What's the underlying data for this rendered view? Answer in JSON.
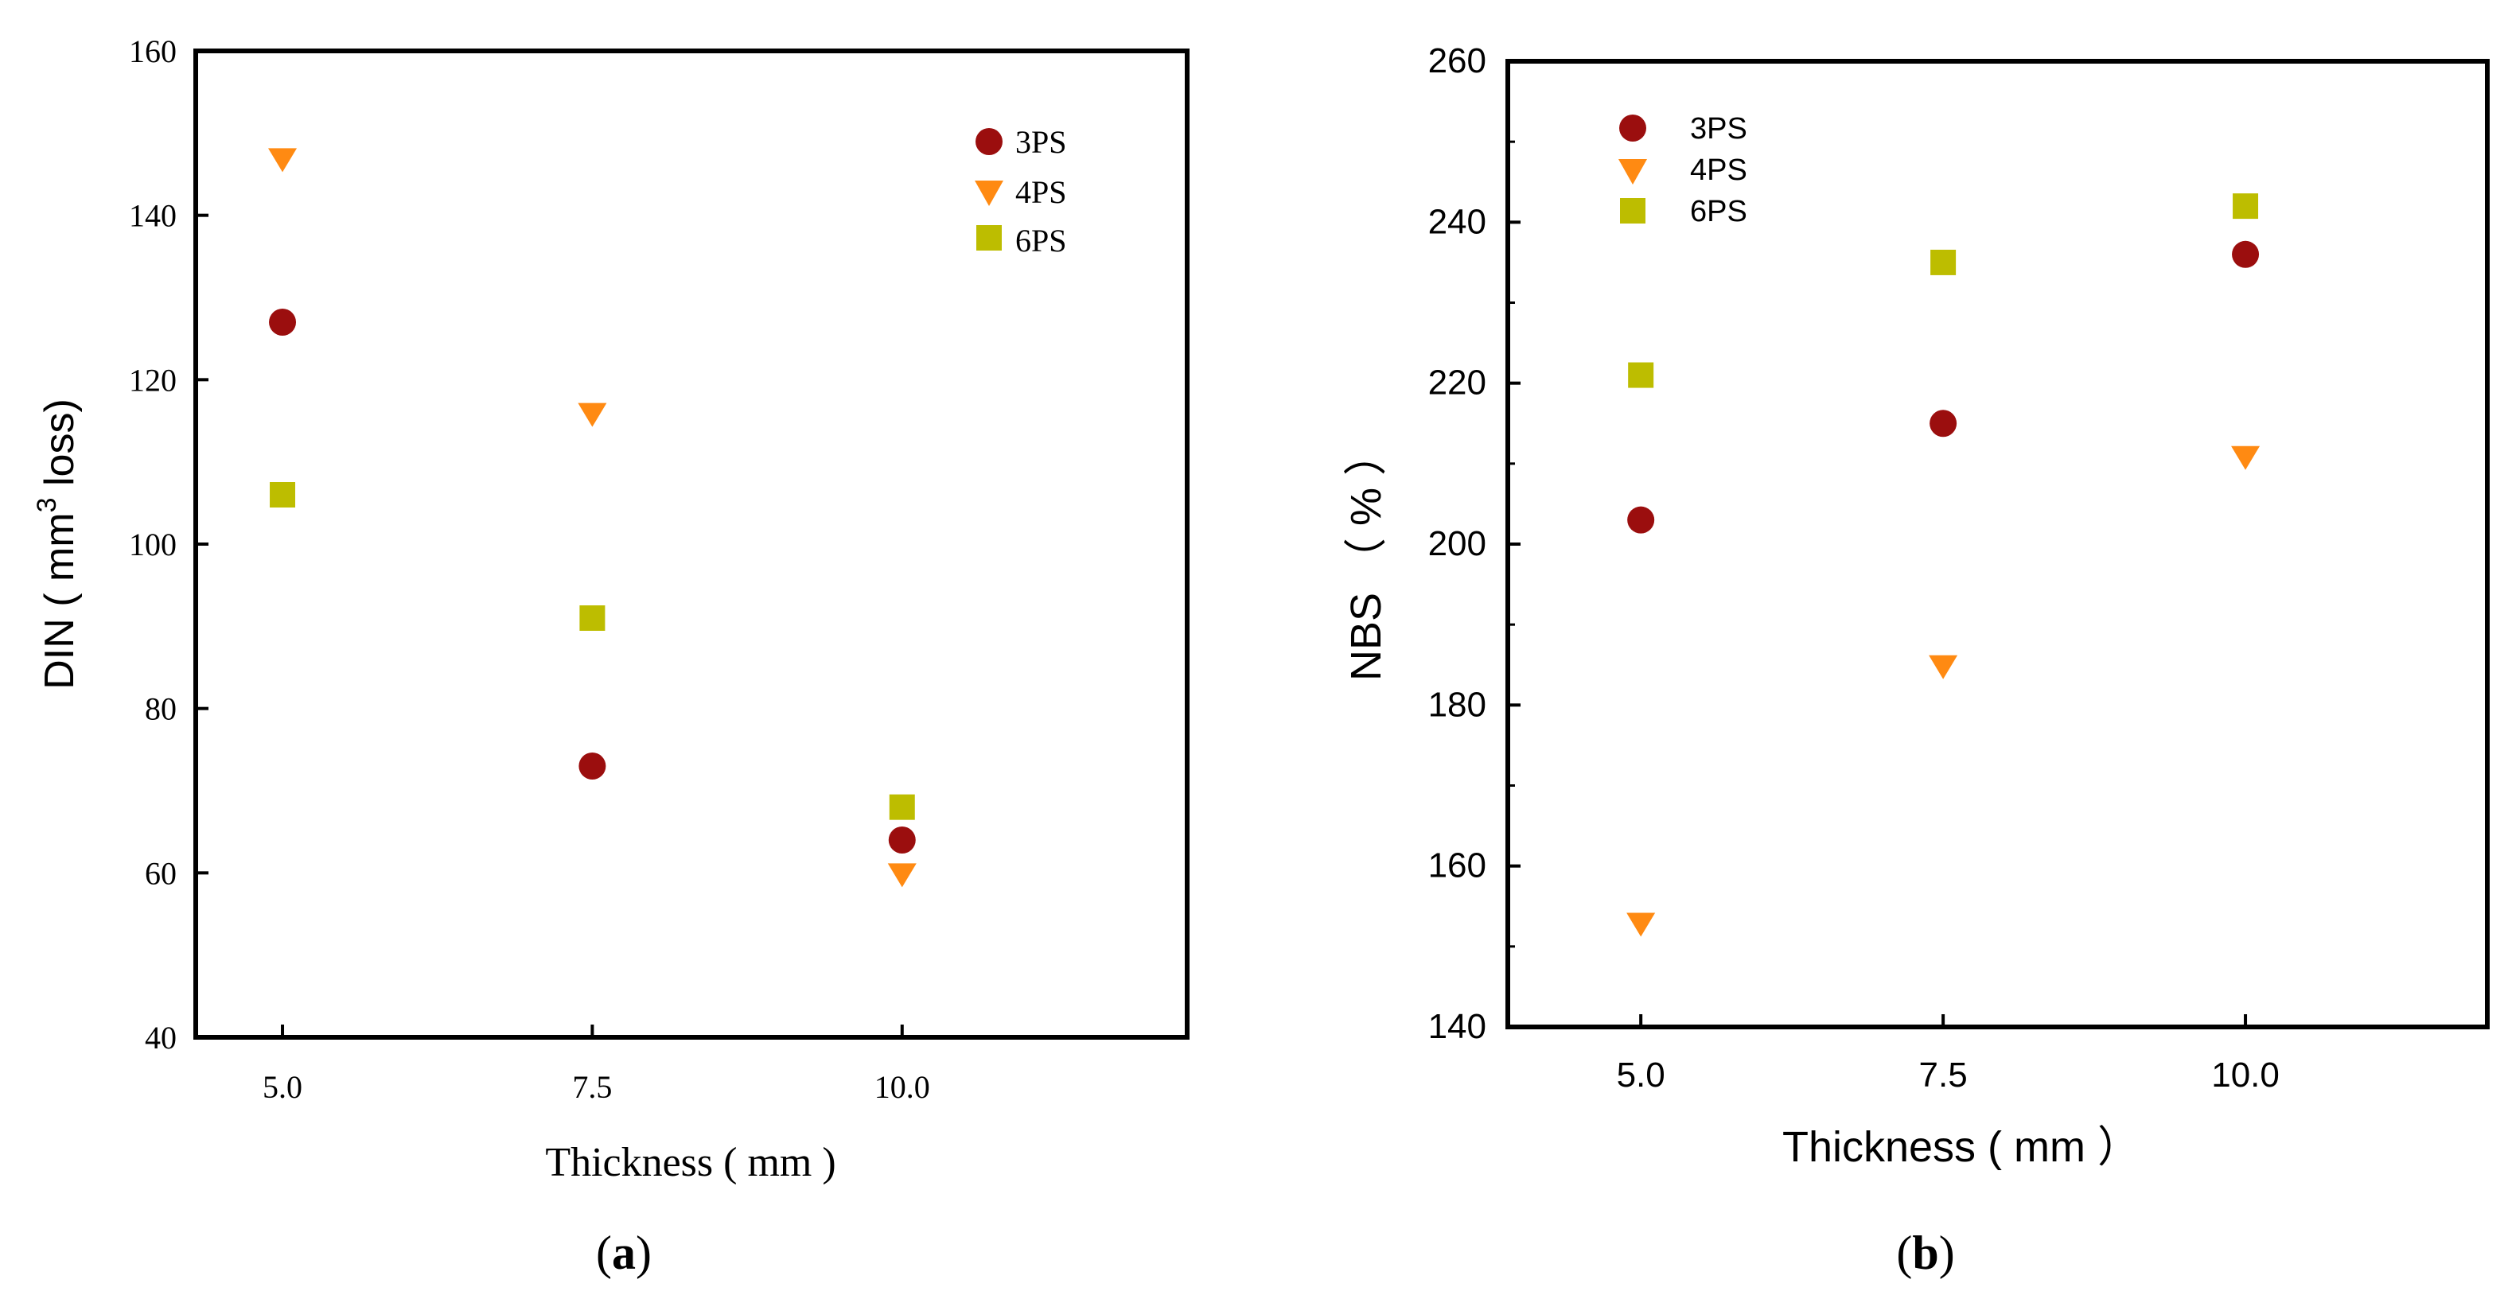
{
  "chart_data": [
    {
      "type": "scatter",
      "panel_label": "a",
      "xlabel": "Thickness ( mm )",
      "ylabel_prefix": "DIN ( mm",
      "ylabel_sup": "3",
      "ylabel_suffix": " loss)",
      "xlim": [
        4.3,
        12.3
      ],
      "ylim": [
        40,
        160
      ],
      "x_ticks": [
        5.0,
        7.5,
        10.0
      ],
      "x_tick_labels": [
        "5.0",
        "7.5",
        "10.0"
      ],
      "y_ticks": [
        40,
        60,
        80,
        100,
        120,
        140,
        160
      ],
      "y_tick_labels": [
        "40",
        "60",
        "80",
        "100",
        "120",
        "140",
        "160"
      ],
      "grid": false,
      "legend_position": "top-right",
      "series": [
        {
          "name": "3PS",
          "marker": "circle",
          "color": "#9B0E0E",
          "x": [
            5.0,
            7.5,
            10.0
          ],
          "y": [
            127,
            73,
            64
          ]
        },
        {
          "name": "4PS",
          "marker": "triangle-down",
          "color": "#FF8A12",
          "x": [
            5.0,
            7.5,
            10.0
          ],
          "y": [
            147,
            116,
            60
          ]
        },
        {
          "name": "6PS",
          "marker": "square",
          "color": "#BDBD00",
          "x": [
            5.0,
            7.5,
            10.0
          ],
          "y": [
            106,
            91,
            68
          ]
        }
      ]
    },
    {
      "type": "scatter",
      "panel_label": "b",
      "xlabel": "Thickness ( mm ）",
      "ylabel": "NBS （ % ）",
      "xlim": [
        3.9,
        12.0
      ],
      "ylim": [
        140,
        260
      ],
      "x_ticks": [
        5.0,
        7.5,
        10.0
      ],
      "x_tick_labels": [
        "5.0",
        "7.5",
        "10.0"
      ],
      "y_ticks": [
        140,
        160,
        180,
        200,
        220,
        240,
        260
      ],
      "y_tick_labels": [
        "140",
        "160",
        "180",
        "200",
        "220",
        "240",
        "260"
      ],
      "grid": false,
      "legend_position": "top-left",
      "series": [
        {
          "name": "3PS",
          "marker": "circle",
          "color": "#9B0E0E",
          "x": [
            5.0,
            7.5,
            10.0
          ],
          "y": [
            203,
            215,
            236
          ]
        },
        {
          "name": "4PS",
          "marker": "triangle-down",
          "color": "#FF8A12",
          "x": [
            5.0,
            7.5,
            10.0
          ],
          "y": [
            153,
            185,
            211
          ]
        },
        {
          "name": "6PS",
          "marker": "square",
          "color": "#BDBD00",
          "x": [
            5.0,
            7.5,
            10.0
          ],
          "y": [
            221,
            235,
            242
          ]
        }
      ]
    }
  ]
}
